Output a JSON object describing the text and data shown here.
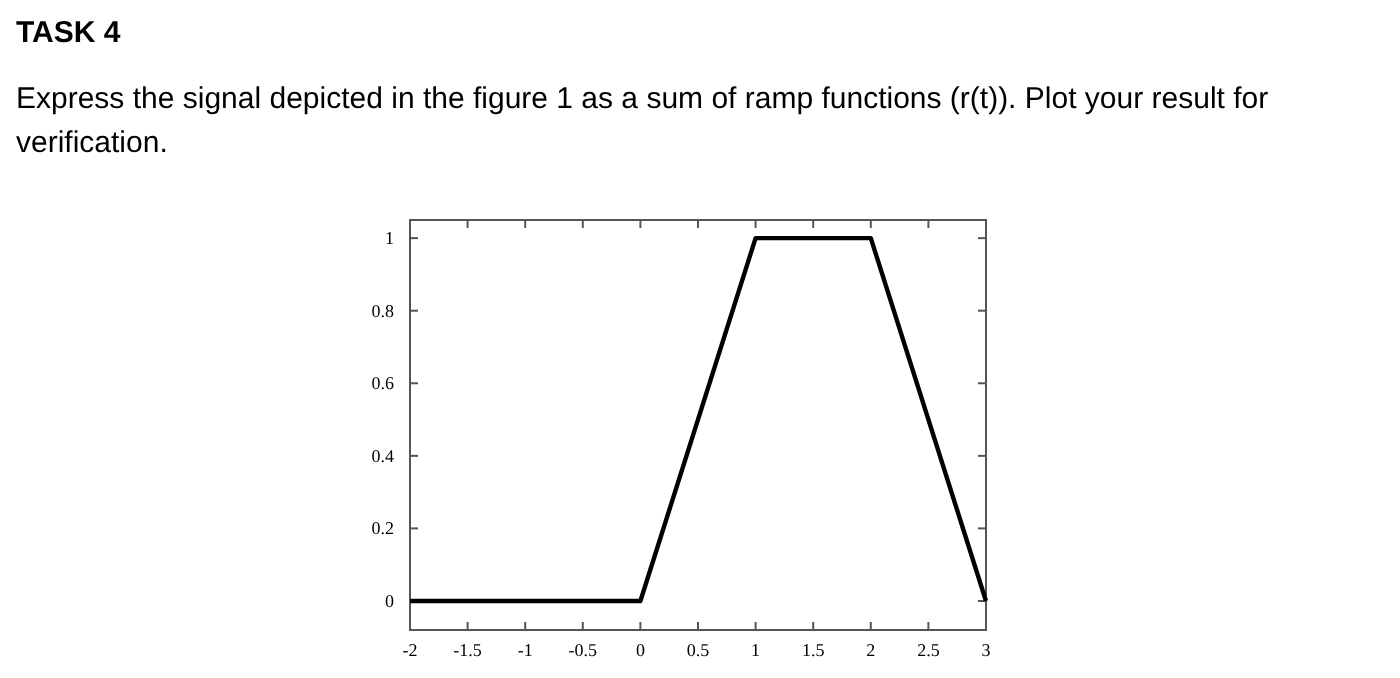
{
  "chart_data": {
    "type": "line",
    "title": "TASK 4",
    "subtitle": "Express the signal depicted in the figure 1 as a sum of ramp functions (r(t)). Plot your result for verification.",
    "x": [
      -2,
      0,
      1,
      2,
      3
    ],
    "series": [
      {
        "color": "#000000",
        "values": [
          0,
          0,
          1,
          1,
          0
        ]
      }
    ],
    "xlim": [
      -2,
      3
    ],
    "ylim": [
      -0.08,
      1.05
    ],
    "xticks": [
      -2,
      -1.5,
      -1,
      -0.5,
      0,
      0.5,
      1,
      1.5,
      2,
      2.5,
      3
    ],
    "yticks": [
      0,
      0.2,
      0.4,
      0.6,
      0.8,
      1
    ],
    "grid": false,
    "marker": "none",
    "line_style": "solid"
  }
}
